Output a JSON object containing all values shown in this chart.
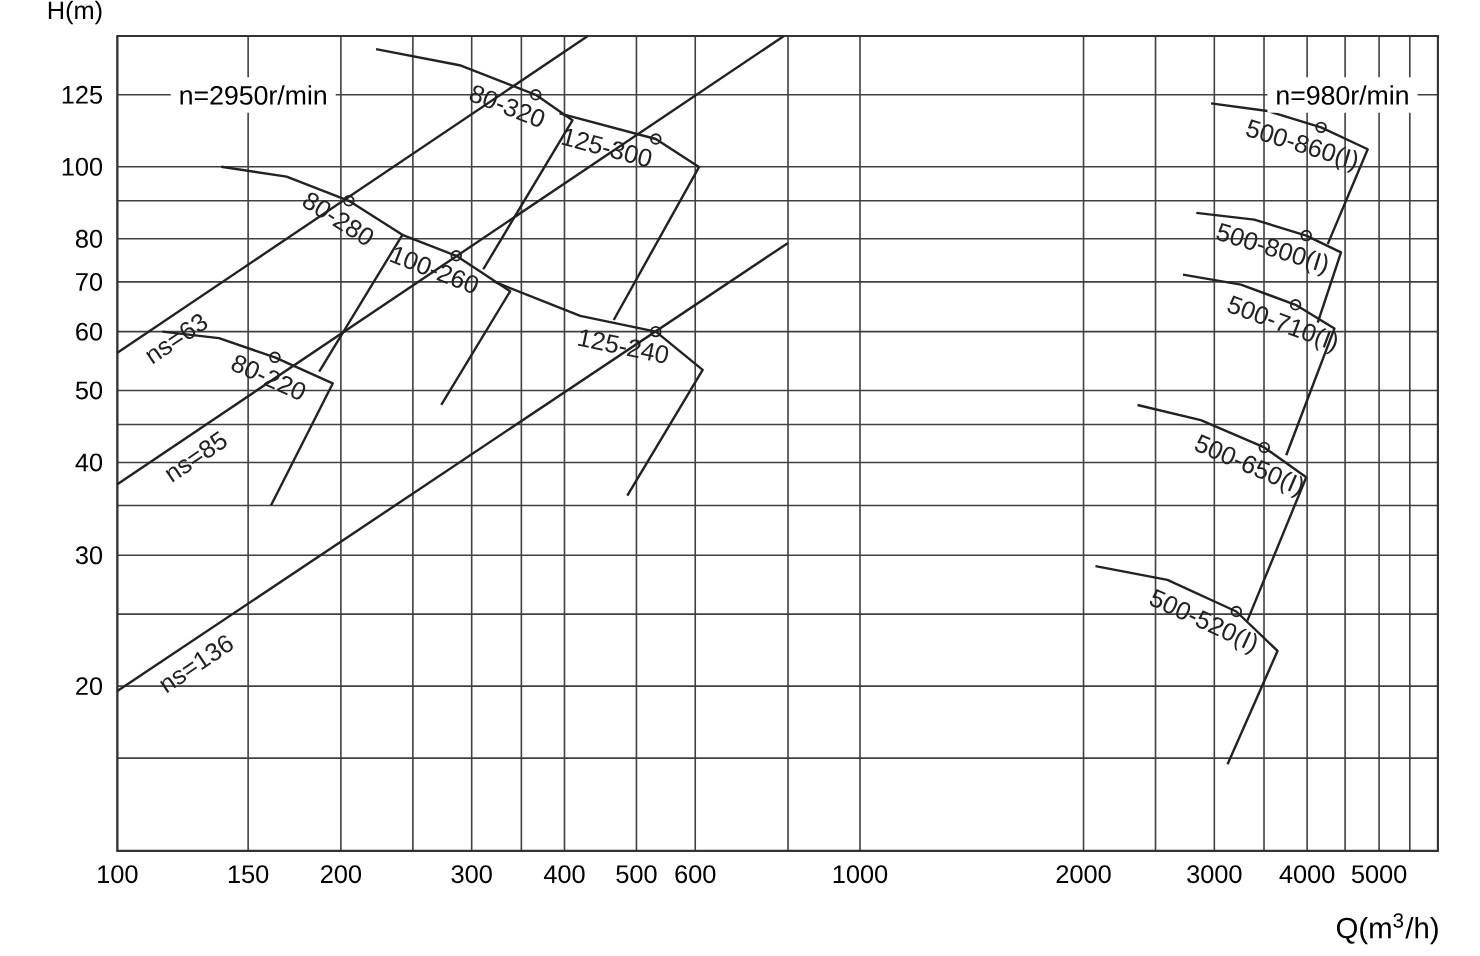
{
  "chart_data": {
    "type": "line",
    "xlabel": "Q(m$^{3}$/h)",
    "ylabel": "H(m)",
    "log": "xy",
    "grid": true,
    "marker": "none",
    "line_style": "solid",
    "xlim": [
      100,
      6000
    ],
    "ylim": [
      12,
      150
    ],
    "xticks": [
      100,
      150,
      200,
      {
        "value": 250,
        "label": null
      },
      300,
      {
        "value": 350,
        "label": null
      },
      400,
      500,
      600,
      {
        "value": 800,
        "label": null
      },
      1000,
      2000,
      {
        "value": 2500,
        "label": null
      },
      3000,
      {
        "value": 3500,
        "label": null
      },
      4000,
      {
        "value": 4500,
        "label": null
      },
      5000,
      {
        "value": 5500,
        "label": null
      }
    ],
    "yticks": [
      {
        "value": 16,
        "label": null
      },
      20,
      {
        "value": 25,
        "label": null
      },
      30,
      {
        "value": 35,
        "label": null
      },
      40,
      {
        "value": 45,
        "label": null
      },
      50,
      60,
      70,
      80,
      {
        "value": 90,
        "label": null
      },
      100,
      125
    ],
    "annotations": [
      "n=2950r/min",
      "n=980r/min"
    ],
    "series": [
      {
        "name": "ns=63",
        "color": "#222222",
        "x": [
          100,
          430
        ],
        "values": [
          56.2,
          150
        ]
      },
      {
        "name": "ns=85",
        "color": "#222222",
        "x": [
          100,
          790
        ],
        "values": [
          37.4,
          150
        ]
      },
      {
        "name": "ns=136",
        "color": "#222222",
        "x": [
          100,
          800
        ],
        "values": [
          19.7,
          79
        ]
      },
      {
        "name": "80-220",
        "color": "#222222",
        "x": [
          115,
          137,
          163,
          195,
          161
        ],
        "values": [
          60,
          58.8,
          55.4,
          51.1,
          35
        ]
      },
      {
        "name": "80-280",
        "color": "#222222",
        "x": [
          138,
          169,
          205,
          242,
          187
        ],
        "values": [
          100,
          97,
          90,
          81,
          53
        ]
      },
      {
        "name": "100-260",
        "color": "#222222",
        "x": [
          242,
          286,
          338,
          273
        ],
        "values": [
          81,
          75.9,
          68,
          47.8
        ]
      },
      {
        "name": "80-320",
        "color": "#222222",
        "x": [
          223,
          289,
          366,
          410,
          311
        ],
        "values": [
          144,
          137,
          125,
          115.5,
          72.8
        ]
      },
      {
        "name": "125-300",
        "color": "#222222",
        "x": [
          394,
          531,
          607,
          466
        ],
        "values": [
          118,
          109,
          99.9,
          62.2
        ]
      },
      {
        "name": "125-240",
        "color": "#222222",
        "x": [
          321,
          420,
          531,
          614,
          486
        ],
        "values": [
          70.1,
          63,
          60,
          53.3,
          36.1
        ]
      },
      {
        "name": "500-860(I)",
        "color": "#222222",
        "x": [
          2969,
          3539,
          4177,
          4827,
          4264
        ],
        "values": [
          121.7,
          118.9,
          113,
          105.6,
          78.7
        ]
      },
      {
        "name": "500-800(I)",
        "color": "#222222",
        "x": [
          2837,
          3396,
          3990,
          4443,
          4134
        ],
        "values": [
          86.7,
          84.9,
          80.8,
          76.7,
          61.7
        ]
      },
      {
        "name": "500-710(I)",
        "color": "#222222",
        "x": [
          2722,
          3258,
          3860,
          4354,
          3750
        ],
        "values": [
          71.6,
          69.4,
          65.2,
          60.6,
          40.9
        ]
      },
      {
        "name": "500-650(I)",
        "color": "#222222",
        "x": [
          2364,
          2877,
          3503,
          3990,
          3324
        ],
        "values": [
          47.8,
          45.6,
          41.9,
          38.2,
          24.5
        ]
      },
      {
        "name": "500-520(I)",
        "color": "#222222",
        "x": [
          2075,
          2594,
          3212,
          3650,
          3126
        ],
        "values": [
          29,
          27.8,
          25.2,
          22.3,
          15.7
        ]
      },
      {
        "type": "scatter",
        "marker": "circle",
        "color": "#222222",
        "x": [
          163,
          205,
          366,
          286,
          531,
          531,
          4177,
          3990,
          3860,
          3503,
          3212
        ],
        "values": [
          55.4,
          90,
          125,
          75.9,
          109,
          60,
          113,
          80.8,
          65.2,
          41.9,
          25.2
        ]
      }
    ]
  }
}
